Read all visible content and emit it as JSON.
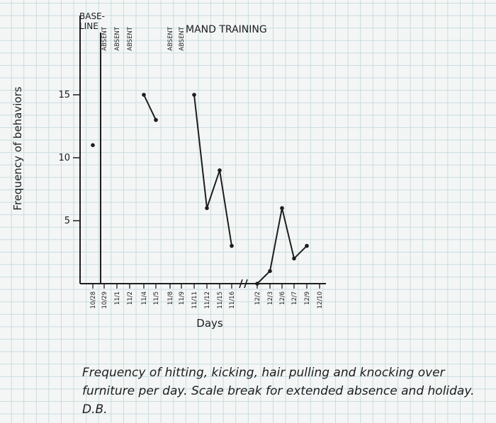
{
  "chart_data": {
    "type": "line",
    "title": "",
    "xlabel": "Days",
    "ylabel": "Frequency of behaviors",
    "ylim": [
      0,
      20
    ],
    "yticks": [
      5,
      10,
      15
    ],
    "grid": true,
    "x_ticks": [
      "10/28",
      "10/29",
      "11/1",
      "11/2",
      "11/4",
      "11/5",
      "11/8",
      "11/9",
      "11/11",
      "11/12",
      "11/15",
      "11/16",
      "12/2",
      "12/3",
      "12/6",
      "12/7",
      "12/9",
      "12/10"
    ],
    "phase_labels": {
      "baseline": "BASE-LINE",
      "intervention": "MAND TRAINING"
    },
    "absent_labels": [
      {
        "x": "10/29",
        "text": "ABSENT"
      },
      {
        "x": "11/1",
        "text": "ABSENT"
      },
      {
        "x": "11/2",
        "text": "ABSENT"
      },
      {
        "x": "11/8",
        "text": "ABSENT"
      },
      {
        "x": "11/9",
        "text": "ABSENT"
      }
    ],
    "series": [
      {
        "segments": [
          [
            {
              "x": "10/28",
              "y": 11
            }
          ],
          [
            {
              "x": "11/4",
              "y": 15
            },
            {
              "x": "11/5",
              "y": 13
            }
          ],
          [
            {
              "x": "11/11",
              "y": 15
            },
            {
              "x": "11/12",
              "y": 6
            },
            {
              "x": "11/15",
              "y": 9
            },
            {
              "x": "11/16",
              "y": 3
            }
          ],
          [
            {
              "x": "12/2",
              "y": 0
            },
            {
              "x": "12/3",
              "y": 1
            },
            {
              "x": "12/6",
              "y": 6
            },
            {
              "x": "12/7",
              "y": 2
            },
            {
              "x": "12/9",
              "y": 3
            }
          ]
        ]
      }
    ],
    "scale_break_between": [
      "11/16",
      "12/2"
    ]
  },
  "caption": "Frequency of hitting, kicking, hair pulling and knocking over furniture per day. Scale break for extended absence and holiday. D.B."
}
